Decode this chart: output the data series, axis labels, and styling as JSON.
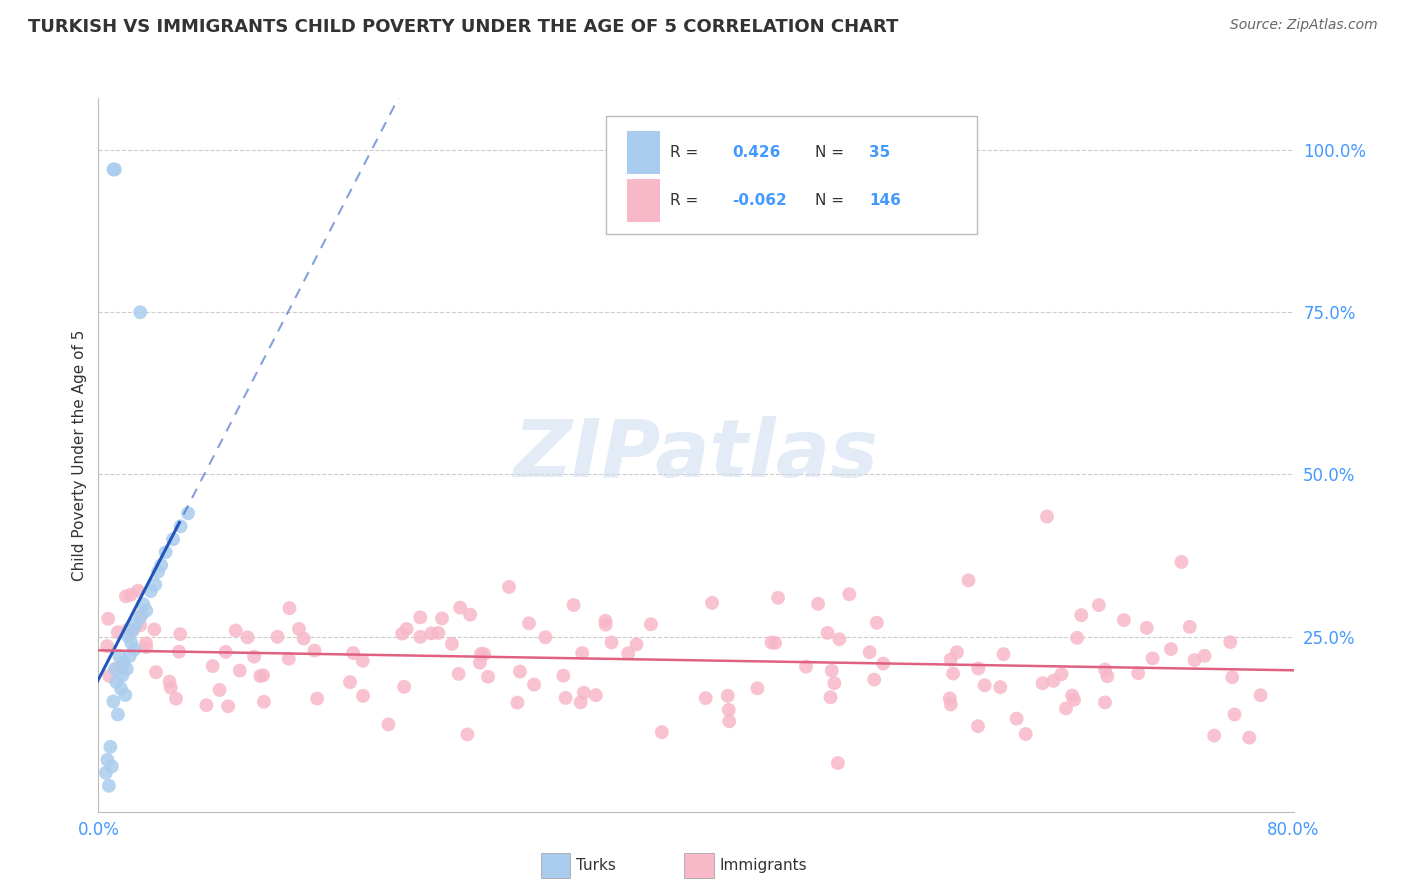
{
  "title": "TURKISH VS IMMIGRANTS CHILD POVERTY UNDER THE AGE OF 5 CORRELATION CHART",
  "source": "Source: ZipAtlas.com",
  "ylabel": "Child Poverty Under the Age of 5",
  "ytick_labels": [
    "25.0%",
    "50.0%",
    "75.0%",
    "100.0%"
  ],
  "ytick_values": [
    0.25,
    0.5,
    0.75,
    1.0
  ],
  "xlim": [
    0.0,
    0.8
  ],
  "ylim": [
    -0.02,
    1.08
  ],
  "turks_R": "0.426",
  "turks_N": "35",
  "immigrants_R": "-0.062",
  "immigrants_N": "146",
  "turks_color": "#aaccee",
  "immigrants_color": "#f7b8c8",
  "turks_line_color": "#2255bb",
  "immigrants_line_color": "#e06080",
  "watermark_color": "#d0dff0",
  "legend_label_1": "R = ",
  "legend_val_1": "0.426",
  "legend_n_label_1": "N= ",
  "legend_n_val_1": "35",
  "legend_label_2": "R = ",
  "legend_val_2": "-0.062",
  "legend_n_label_2": "N= ",
  "legend_n_val_2": "146",
  "bottom_legend_turks": "Turks",
  "bottom_legend_immigrants": "Immigrants",
  "watermark_text": "ZIPatlas"
}
